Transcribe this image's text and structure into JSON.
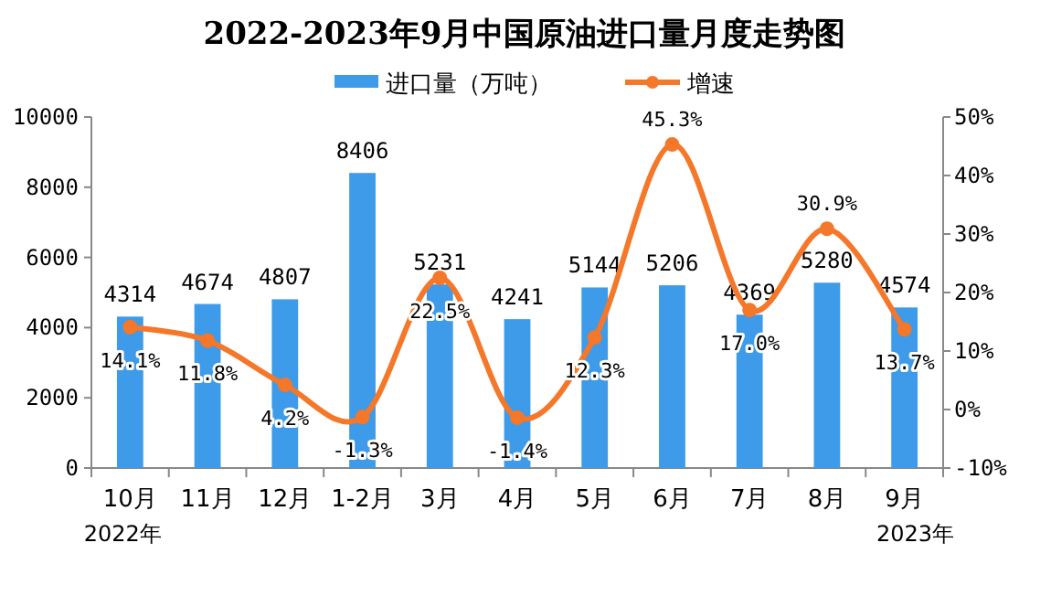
{
  "chart_data": {
    "type": "bar",
    "title": "2022-2023年9月中国原油进口量月度走势图",
    "categories": [
      "10月",
      "11月",
      "12月",
      "1-2月",
      "3月",
      "4月",
      "5月",
      "6月",
      "7月",
      "8月",
      "9月"
    ],
    "series": [
      {
        "name": "进口量（万吨）",
        "color": "#3d9be9",
        "values": [
          4314,
          4674,
          4807,
          8406,
          5231,
          4241,
          5144,
          5206,
          4369,
          5280,
          4574
        ],
        "value_labels": [
          "4314",
          "4674",
          "4807",
          "8406",
          "5231",
          "4241",
          "5144",
          "5206",
          "4369",
          "5280",
          "4574"
        ]
      },
      {
        "name": "增速",
        "type": "line",
        "axis": "y2",
        "color": "#f5772a",
        "marker": "circle",
        "values": [
          14.1,
          11.8,
          4.2,
          -1.3,
          22.5,
          -1.4,
          12.3,
          45.3,
          17.0,
          30.9,
          13.7
        ],
        "value_labels": [
          "14.1%",
          "11.8%",
          "4.2%",
          "-1.3%",
          "22.5%",
          "-1.4%",
          "12.3%",
          "45.3%",
          "17.0%",
          "30.9%",
          "13.7%"
        ]
      }
    ],
    "ylim": [
      0,
      10000
    ],
    "yticks": [
      0,
      2000,
      4000,
      6000,
      8000,
      10000
    ],
    "y2lim": [
      -10,
      50
    ],
    "y2ticks": [
      {
        "value": -10,
        "label": "-10%"
      },
      {
        "value": 0,
        "label": "0%"
      },
      {
        "value": 10,
        "label": "10%"
      },
      {
        "value": 20,
        "label": "20%"
      },
      {
        "value": 30,
        "label": "30%"
      },
      {
        "value": 40,
        "label": "40%"
      },
      {
        "value": 50,
        "label": "50%"
      }
    ],
    "legend": "top",
    "annotations": [
      "2022年",
      "2023年"
    ]
  }
}
